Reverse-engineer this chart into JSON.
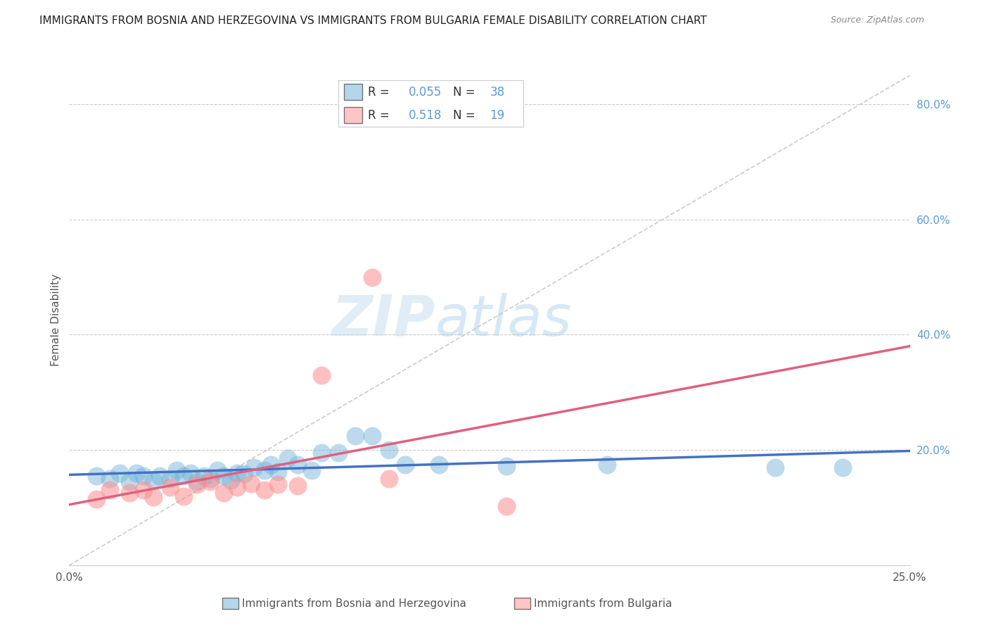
{
  "title": "IMMIGRANTS FROM BOSNIA AND HERZEGOVINA VS IMMIGRANTS FROM BULGARIA FEMALE DISABILITY CORRELATION CHART",
  "source": "Source: ZipAtlas.com",
  "ylabel": "Female Disability",
  "legend_label_1": "Immigrants from Bosnia and Herzegovina",
  "legend_label_2": "Immigrants from Bulgaria",
  "R1": 0.055,
  "N1": 38,
  "R2": 0.518,
  "N2": 19,
  "color_blue": "#6baed6",
  "color_pink": "#fc8d8d",
  "color_diag": "#cccccc",
  "xlim": [
    0.0,
    0.25
  ],
  "ylim": [
    0.0,
    0.85
  ],
  "blue_scatter_x": [
    0.008,
    0.012,
    0.015,
    0.018,
    0.02,
    0.022,
    0.025,
    0.027,
    0.03,
    0.032,
    0.034,
    0.036,
    0.038,
    0.04,
    0.042,
    0.044,
    0.046,
    0.048,
    0.05,
    0.052,
    0.055,
    0.058,
    0.06,
    0.062,
    0.065,
    0.068,
    0.072,
    0.075,
    0.08,
    0.085,
    0.09,
    0.095,
    0.1,
    0.11,
    0.13,
    0.16,
    0.21,
    0.23
  ],
  "blue_scatter_y": [
    0.155,
    0.15,
    0.16,
    0.145,
    0.16,
    0.155,
    0.148,
    0.155,
    0.15,
    0.165,
    0.155,
    0.16,
    0.145,
    0.155,
    0.15,
    0.165,
    0.155,
    0.148,
    0.16,
    0.158,
    0.17,
    0.165,
    0.175,
    0.162,
    0.185,
    0.175,
    0.165,
    0.195,
    0.195,
    0.225,
    0.225,
    0.2,
    0.175,
    0.175,
    0.172,
    0.175,
    0.17,
    0.17
  ],
  "pink_scatter_x": [
    0.008,
    0.012,
    0.018,
    0.022,
    0.025,
    0.03,
    0.034,
    0.038,
    0.042,
    0.046,
    0.05,
    0.054,
    0.058,
    0.062,
    0.068,
    0.075,
    0.09,
    0.095,
    0.13
  ],
  "pink_scatter_y": [
    0.115,
    0.13,
    0.125,
    0.13,
    0.118,
    0.135,
    0.12,
    0.14,
    0.145,
    0.125,
    0.135,
    0.142,
    0.13,
    0.14,
    0.138,
    0.33,
    0.5,
    0.15,
    0.102
  ],
  "watermark_zip": "ZIP",
  "watermark_atlas": "atlas",
  "background_color": "#ffffff"
}
